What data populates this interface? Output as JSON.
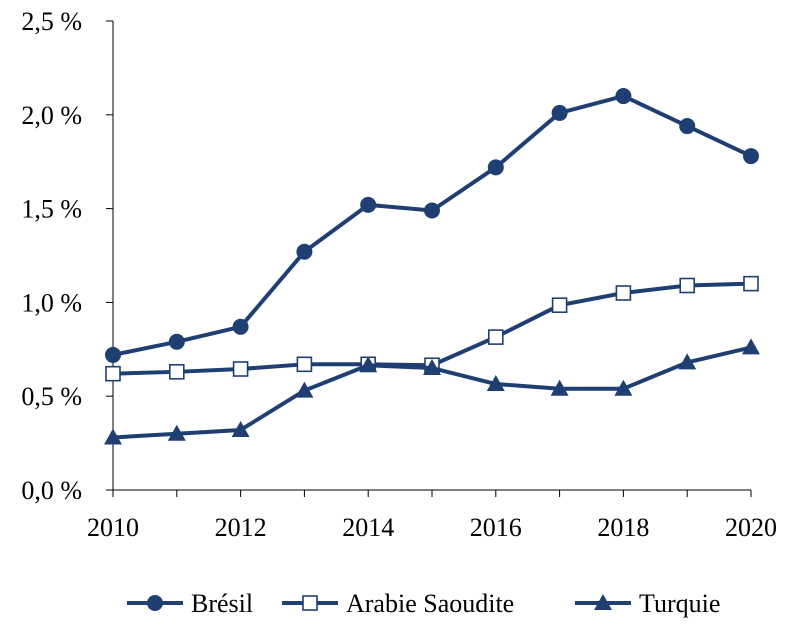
{
  "chart_data": {
    "type": "line",
    "title": "",
    "xlabel": "",
    "ylabel": "",
    "x": [
      2010,
      2011,
      2012,
      2013,
      2014,
      2015,
      2016,
      2017,
      2018,
      2019,
      2020
    ],
    "xticks": [
      "2010",
      "2012",
      "2014",
      "2016",
      "2018",
      "2020"
    ],
    "xlim": [
      2010,
      2020
    ],
    "ylim": [
      0,
      2.5
    ],
    "yticks": [
      "0,0 %",
      "0,5 %",
      "1,0 %",
      "1,5 %",
      "2,0 %",
      "2,5 %"
    ],
    "grid": false,
    "legend_position": "bottom",
    "color": "#1f3f73",
    "series": [
      {
        "name": "Brésil",
        "marker": "circle",
        "values": [
          0.72,
          0.79,
          0.87,
          1.27,
          1.52,
          1.49,
          1.72,
          2.01,
          2.1,
          1.94,
          1.78
        ]
      },
      {
        "name": "Arabie Saoudite",
        "marker": "square-open",
        "values": [
          0.62,
          0.63,
          0.645,
          0.67,
          0.67,
          0.665,
          0.815,
          0.985,
          1.05,
          1.09,
          1.1
        ]
      },
      {
        "name": "Turquie",
        "marker": "triangle",
        "values": [
          0.28,
          0.3,
          0.32,
          0.53,
          0.665,
          0.65,
          0.565,
          0.54,
          0.54,
          0.68,
          0.76
        ]
      }
    ]
  }
}
